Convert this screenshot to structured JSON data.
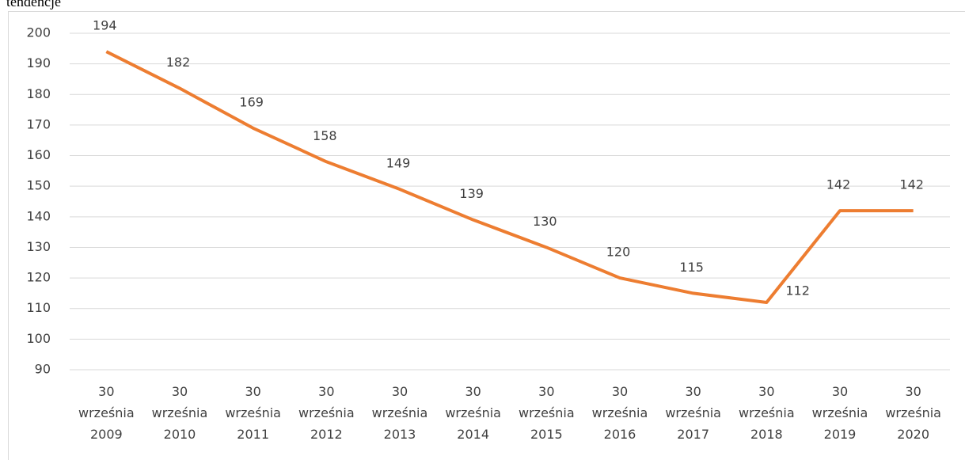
{
  "caption": "tendencje",
  "chart_data": {
    "type": "line",
    "categories": [
      "30 września 2009",
      "30 września 2010",
      "30 września 2011",
      "30 września 2012",
      "30 września 2013",
      "30 września 2014",
      "30 września 2015",
      "30 września 2016",
      "30 września 2017",
      "30 września 2018",
      "30 września 2019",
      "30 września 2020"
    ],
    "series": [
      {
        "color": "#ED7D31",
        "values": [
          194,
          182,
          169,
          158,
          149,
          139,
          130,
          120,
          115,
          112,
          142,
          142
        ]
      }
    ],
    "ylim": [
      90,
      200
    ],
    "yticks": [
      90,
      100,
      110,
      120,
      130,
      140,
      150,
      160,
      170,
      180,
      190,
      200
    ],
    "grid": true
  }
}
